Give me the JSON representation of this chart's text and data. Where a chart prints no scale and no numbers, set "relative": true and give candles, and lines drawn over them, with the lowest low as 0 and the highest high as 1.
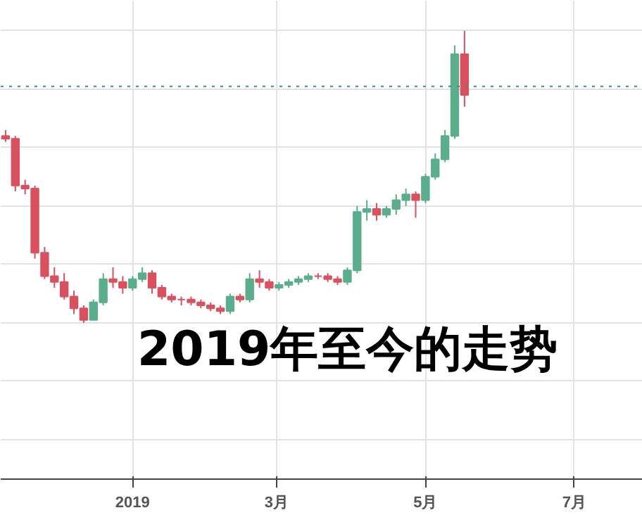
{
  "chart_data": {
    "type": "candlestick",
    "title": "2019年至今的走势",
    "relative": true,
    "x": [
      "2018-11-10",
      "2018-11-14",
      "2018-11-18",
      "2018-11-22",
      "2018-11-26",
      "2018-11-30",
      "2018-12-04",
      "2018-12-08",
      "2018-12-12",
      "2018-12-16",
      "2018-12-20",
      "2018-12-24",
      "2018-12-28",
      "2019-01-01",
      "2019-01-05",
      "2019-01-09",
      "2019-01-13",
      "2019-01-17",
      "2019-01-21",
      "2019-01-25",
      "2019-01-29",
      "2019-02-02",
      "2019-02-06",
      "2019-02-10",
      "2019-02-14",
      "2019-02-18",
      "2019-02-22",
      "2019-02-26",
      "2019-03-02",
      "2019-03-06",
      "2019-03-10",
      "2019-03-14",
      "2019-03-18",
      "2019-03-22",
      "2019-03-26",
      "2019-03-30",
      "2019-04-03",
      "2019-04-07",
      "2019-04-11",
      "2019-04-15",
      "2019-04-19",
      "2019-04-23",
      "2019-04-27",
      "2019-05-01",
      "2019-05-05",
      "2019-05-09",
      "2019-05-13",
      "2019-05-17"
    ],
    "ohlc": [
      [
        0.64,
        0.66,
        0.62,
        0.63
      ],
      [
        0.63,
        0.64,
        0.45,
        0.47
      ],
      [
        0.47,
        0.49,
        0.44,
        0.46
      ],
      [
        0.46,
        0.47,
        0.22,
        0.24
      ],
      [
        0.24,
        0.26,
        0.15,
        0.16
      ],
      [
        0.16,
        0.19,
        0.12,
        0.14
      ],
      [
        0.14,
        0.17,
        0.08,
        0.09
      ],
      [
        0.09,
        0.11,
        0.03,
        0.05
      ],
      [
        0.05,
        0.06,
        0,
        0.01
      ],
      [
        0.01,
        0.08,
        0.01,
        0.07
      ],
      [
        0.07,
        0.17,
        0.06,
        0.15
      ],
      [
        0.15,
        0.19,
        0.12,
        0.14
      ],
      [
        0.14,
        0.16,
        0.1,
        0.12
      ],
      [
        0.12,
        0.16,
        0.11,
        0.15
      ],
      [
        0.15,
        0.19,
        0.14,
        0.17
      ],
      [
        0.17,
        0.18,
        0.1,
        0.12
      ],
      [
        0.12,
        0.13,
        0.08,
        0.09
      ],
      [
        0.09,
        0.1,
        0.07,
        0.08
      ],
      [
        0.08,
        0.09,
        0.06,
        0.08
      ],
      [
        0.08,
        0.09,
        0.06,
        0.07
      ],
      [
        0.07,
        0.08,
        0.05,
        0.06
      ],
      [
        0.06,
        0.07,
        0.04,
        0.05
      ],
      [
        0.05,
        0.06,
        0.03,
        0.04
      ],
      [
        0.04,
        0.1,
        0.03,
        0.09
      ],
      [
        0.09,
        0.1,
        0.07,
        0.08
      ],
      [
        0.08,
        0.17,
        0.07,
        0.15
      ],
      [
        0.15,
        0.18,
        0.12,
        0.14
      ],
      [
        0.14,
        0.15,
        0.11,
        0.12
      ],
      [
        0.12,
        0.14,
        0.11,
        0.13
      ],
      [
        0.13,
        0.15,
        0.12,
        0.14
      ],
      [
        0.14,
        0.16,
        0.13,
        0.15
      ],
      [
        0.15,
        0.17,
        0.14,
        0.16
      ],
      [
        0.16,
        0.17,
        0.15,
        0.16
      ],
      [
        0.16,
        0.17,
        0.14,
        0.15
      ],
      [
        0.15,
        0.16,
        0.13,
        0.14
      ],
      [
        0.14,
        0.19,
        0.13,
        0.18
      ],
      [
        0.18,
        0.4,
        0.17,
        0.38
      ],
      [
        0.38,
        0.42,
        0.35,
        0.39
      ],
      [
        0.39,
        0.41,
        0.35,
        0.37
      ],
      [
        0.37,
        0.4,
        0.36,
        0.39
      ],
      [
        0.39,
        0.44,
        0.37,
        0.42
      ],
      [
        0.42,
        0.46,
        0.4,
        0.44
      ],
      [
        0.44,
        0.45,
        0.36,
        0.42
      ],
      [
        0.42,
        0.51,
        0.41,
        0.5
      ],
      [
        0.5,
        0.58,
        0.49,
        0.56
      ],
      [
        0.56,
        0.66,
        0.55,
        0.64
      ],
      [
        0.64,
        0.95,
        0.63,
        0.92
      ],
      [
        0.92,
        1,
        0.74,
        0.78
      ]
    ],
    "colors": [
      "#d9505f",
      "#d9505f",
      "#d9505f",
      "#d9505f",
      "#d9505f",
      "#d9505f",
      "#d9505f",
      "#d9505f",
      "#d9505f",
      "#5aae8c",
      "#5aae8c",
      "#d9505f",
      "#d9505f",
      "#5aae8c",
      "#5aae8c",
      "#d9505f",
      "#d9505f",
      "#d9505f",
      "#d9505f",
      "#d9505f",
      "#d9505f",
      "#d9505f",
      "#d9505f",
      "#5aae8c",
      "#d9505f",
      "#5aae8c",
      "#d9505f",
      "#d9505f",
      "#5aae8c",
      "#5aae8c",
      "#5aae8c",
      "#5aae8c",
      "#d9505f",
      "#d9505f",
      "#d9505f",
      "#5aae8c",
      "#5aae8c",
      "#5aae8c",
      "#d9505f",
      "#5aae8c",
      "#5aae8c",
      "#5aae8c",
      "#d9505f",
      "#5aae8c",
      "#5aae8c",
      "#5aae8c",
      "#5aae8c",
      "#d9505f"
    ],
    "xlim": [
      "2018-11-08",
      "2019-07-29"
    ],
    "xticks": [
      {
        "value": "2019-01-01",
        "label": "2019"
      },
      {
        "value": "2019-03-01",
        "label": "3月"
      },
      {
        "value": "2019-05-01",
        "label": "5月"
      },
      {
        "value": "2019-07-01",
        "label": "7月"
      }
    ],
    "ref_lines": [
      {
        "axis": "y",
        "value": 0.81,
        "color": "#3a8f8f",
        "line_style": "dotted"
      }
    ],
    "grid": true,
    "tick_labels": "x"
  }
}
